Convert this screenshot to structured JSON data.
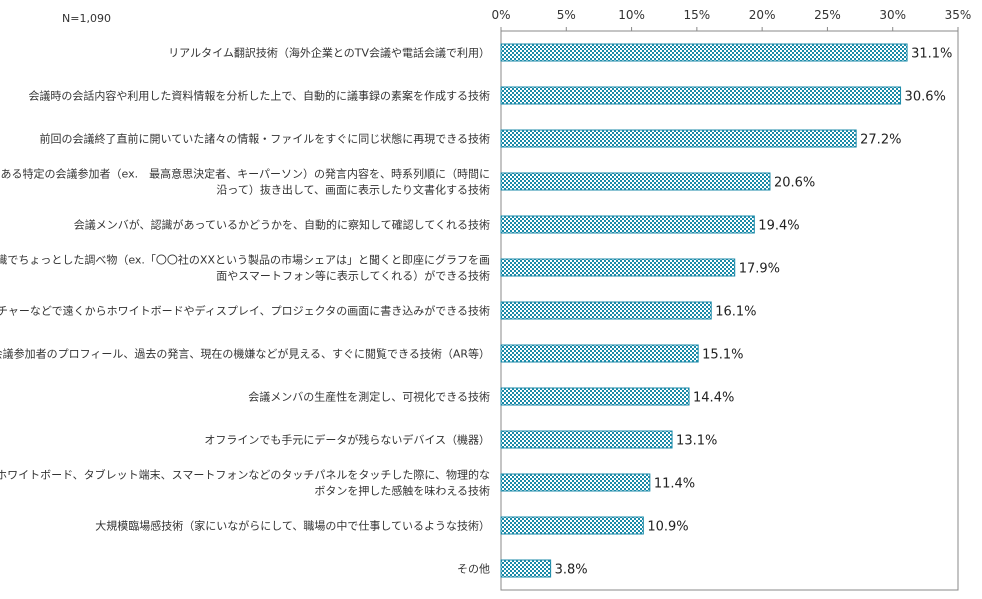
{
  "sample_note": "N=1,090",
  "chart_data": {
    "type": "bar",
    "orientation": "horizontal",
    "title": "",
    "xlabel": "",
    "ylabel": "",
    "xlim": [
      0,
      35
    ],
    "ticks": [
      "0%",
      "5%",
      "10%",
      "15%",
      "20%",
      "25%",
      "30%",
      "35%"
    ],
    "grid": false,
    "legend": "none",
    "bar_color": "#1a8aa8",
    "bar_fill": "checker pattern",
    "categories": [
      [
        "リアルタイム翻訳技術（海外企業とのTV会議や電話会議で利用）"
      ],
      [
        "会議時の会話内容や利用した資料情報を分析した上で、自動的に議事録の素案を作成する技術"
      ],
      [
        "前回の会議終了直前に開いていた諸々の情報・ファイルをすぐに同じ状態に再現できる技術"
      ],
      [
        "ある特定の会議参加者（ex.　最高意思決定者、キーパーソン）の発言内容を、時系列順に（時間に",
        "沿って）抜き出して、画面に表示したり文書化する技術"
      ],
      [
        "会議メンバが、認識があっているかどうかを、自動的に察知して確認してくれる技術"
      ],
      [
        "音声認識でちょっとした調べ物（ex.「〇〇社のXXという製品の市場シェアは」と聞くと即座にグラフを画",
        "面やスマートフォン等に表示してくれる）ができる技術"
      ],
      [
        "ジェスチャーなどで遠くからホワイトボードやディスプレイ、プロジェクタの画面に書き込みができる技術"
      ],
      [
        "会議参加者のプロフィール、過去の発言、現在の機嫌などが見える、すぐに閲覧できる技術（AR等）"
      ],
      [
        "会議メンバの生産性を測定し、可視化できる技術"
      ],
      [
        "オフラインでも手元にデータが残らないデバイス（機器）"
      ],
      [
        "デジタルホワイトボード、タブレット端末、スマートフォンなどのタッチパネルをタッチした際に、物理的な",
        "ボタンを押した感触を味わえる技術"
      ],
      [
        "大規模臨場感技術（家にいながらにして、職場の中で仕事しているような技術）"
      ],
      [
        "その他"
      ]
    ],
    "values": [
      31.1,
      30.6,
      27.2,
      20.6,
      19.4,
      17.9,
      16.1,
      15.1,
      14.4,
      13.1,
      11.4,
      10.9,
      3.8
    ],
    "value_labels": [
      "31.1%",
      "30.6%",
      "27.2%",
      "20.6%",
      "19.4%",
      "17.9%",
      "16.1%",
      "15.1%",
      "14.4%",
      "13.1%",
      "11.4%",
      "10.9%",
      "3.8%"
    ]
  }
}
